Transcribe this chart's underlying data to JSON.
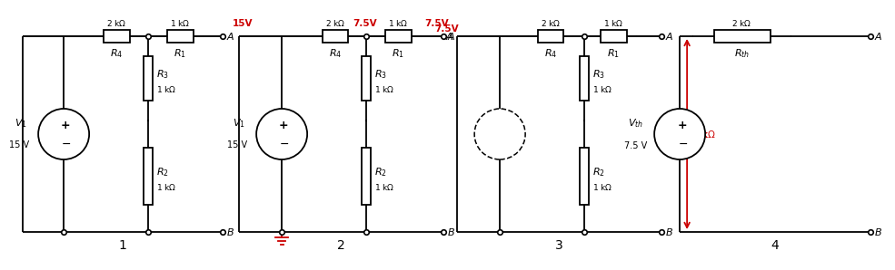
{
  "bg_color": "#ffffff",
  "line_color": "#000000",
  "red_color": "#cc0000",
  "circuits": [
    {
      "label": "1",
      "has_vs": true,
      "vs_dashed": false,
      "vs_V1": true,
      "vs_val": "15 V",
      "red_labels": [],
      "has_ground": false,
      "has_red_arrow": false
    },
    {
      "label": "2",
      "has_vs": true,
      "vs_dashed": false,
      "vs_V1": true,
      "vs_val": "15 V",
      "red_labels": [
        "15V",
        "7.5V",
        "7.5V"
      ],
      "has_ground": true,
      "has_red_arrow": false
    },
    {
      "label": "3",
      "has_vs": true,
      "vs_dashed": true,
      "vs_V1": false,
      "vs_val": "",
      "red_labels": [
        "7.5V"
      ],
      "has_ground": false,
      "has_red_arrow": true
    },
    {
      "label": "4",
      "has_vs": false,
      "vs_dashed": false,
      "vs_V1": false,
      "vs_val": "7.5 V",
      "red_labels": [],
      "has_ground": false,
      "has_red_arrow": false
    }
  ],
  "R4_val": "2 kΩ",
  "R1_val": "1 kΩ",
  "R3_val": "1 kΩ",
  "R2_val": "1 kΩ",
  "Rth_val": "2 kΩ",
  "red_arrow_val": "2 kΩ",
  "Vth_val": "7.5 V"
}
